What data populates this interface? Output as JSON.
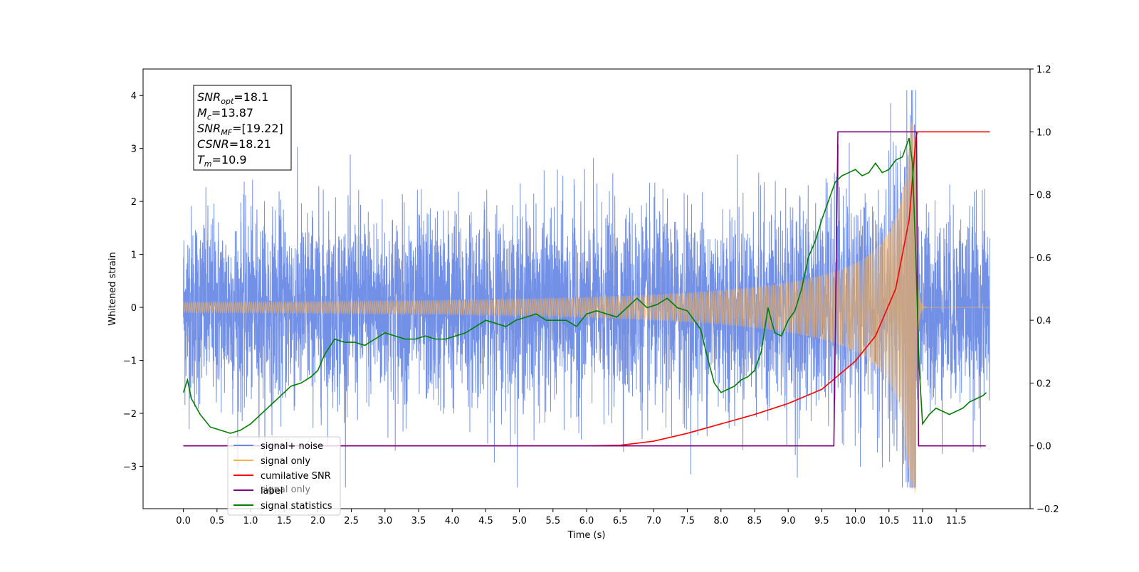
{
  "chart_data": {
    "type": "line",
    "xlabel": "Time (s)",
    "ylabel": "Whitened strain",
    "xlim": [
      -0.6,
      12.6
    ],
    "ylim": [
      -3.8,
      4.5
    ],
    "y2lim": [
      -0.2,
      1.2
    ],
    "x_ticks": [
      0.0,
      0.5,
      1.0,
      1.5,
      2.0,
      2.5,
      3.0,
      3.5,
      4.0,
      4.5,
      5.0,
      5.5,
      6.0,
      6.5,
      7.0,
      7.5,
      8.0,
      8.5,
      9.0,
      9.5,
      10.0,
      10.5,
      11.0,
      11.5
    ],
    "x_tick_labels": [
      "0.0",
      "0.5",
      "1.0",
      "1.5",
      "2.0",
      "2.5",
      "3.0",
      "3.5",
      "4.0",
      "4.5",
      "5.0",
      "5.5",
      "6.0",
      "6.5",
      "7.0",
      "7.5",
      "8.0",
      "8.5",
      "9.0",
      "9.5",
      "10.0",
      "10.5",
      "11.0",
      "11.5"
    ],
    "y_ticks": [
      -3,
      -2,
      -1,
      0,
      1,
      2,
      3,
      4
    ],
    "y_tick_labels": [
      "−3",
      "−2",
      "−1",
      "0",
      "1",
      "2",
      "3",
      "4"
    ],
    "y2_ticks": [
      -0.2,
      0.0,
      0.2,
      0.4,
      0.6,
      0.8,
      1.0,
      1.2
    ],
    "y2_tick_labels": [
      "−0.2",
      "0.0",
      "0.2",
      "0.4",
      "0.6",
      "0.8",
      "1.0",
      "1.2"
    ],
    "grid": false,
    "legend_position": "lower-left",
    "legend": [
      {
        "label": "signal+ noise",
        "color": "#6b8ae6"
      },
      {
        "label": "signal only",
        "color": "#ffb347"
      },
      {
        "label": "cumilative SNR",
        "color": "#ff0000"
      },
      {
        "label": "label",
        "color": "#800080"
      },
      {
        "label": "signal statistics",
        "color": "#008000"
      }
    ],
    "hidden_legend_text": "signal only",
    "annotation": {
      "lines": [
        {
          "var": "SNR",
          "sub": "opt",
          "value": "=18.1"
        },
        {
          "var": "M",
          "sub": "c",
          "value": "=13.87"
        },
        {
          "var": "SNR",
          "sub": "MF",
          "value": "=[19.22]"
        },
        {
          "var": "CSNR",
          "sub": "",
          "value": "=18.21"
        },
        {
          "var": "T",
          "sub": "m",
          "value": "=10.9"
        }
      ]
    },
    "series": [
      {
        "name": "signal+ noise",
        "axis": "left",
        "color": "#6b8ae6",
        "kind": "noise",
        "t_start": 0.0,
        "t_end": 12.0,
        "sigma": 0.9,
        "peak_max": 4.1,
        "trough_min": -3.4
      },
      {
        "name": "signal only",
        "axis": "left",
        "color": "#ffb347",
        "kind": "chirp",
        "t_start": 0.0,
        "t_end": 12.0,
        "merger_time": 10.9,
        "peak_amplitude": 3.5
      },
      {
        "name": "cumilative SNR",
        "axis": "right",
        "color": "#ff0000",
        "x": [
          0.0,
          6.0,
          6.5,
          7.0,
          7.5,
          8.0,
          8.5,
          9.0,
          9.5,
          10.0,
          10.3,
          10.6,
          10.8,
          10.9,
          10.92,
          12.0
        ],
        "values": [
          0.0,
          0.0,
          0.002,
          0.015,
          0.04,
          0.07,
          0.1,
          0.135,
          0.18,
          0.27,
          0.35,
          0.5,
          0.72,
          0.98,
          1.0,
          1.0
        ]
      },
      {
        "name": "label",
        "axis": "right",
        "color": "#800080",
        "x": [
          0.0,
          9.68,
          9.74,
          10.91,
          10.94,
          11.94
        ],
        "values": [
          0.0,
          0.0,
          1.0,
          1.0,
          0.0,
          0.0
        ]
      },
      {
        "name": "signal statistics",
        "axis": "right",
        "color": "#008000",
        "x": [
          0.0,
          0.06,
          0.12,
          0.25,
          0.4,
          0.55,
          0.7,
          0.85,
          1.0,
          1.15,
          1.3,
          1.45,
          1.6,
          1.75,
          1.9,
          2.0,
          2.1,
          2.25,
          2.4,
          2.55,
          2.7,
          2.85,
          3.0,
          3.15,
          3.3,
          3.45,
          3.6,
          3.75,
          3.9,
          4.05,
          4.2,
          4.35,
          4.5,
          4.65,
          4.8,
          4.95,
          5.1,
          5.25,
          5.4,
          5.55,
          5.7,
          5.85,
          6.0,
          6.15,
          6.3,
          6.45,
          6.6,
          6.75,
          6.9,
          7.05,
          7.2,
          7.35,
          7.5,
          7.6,
          7.7,
          7.8,
          7.9,
          8.0,
          8.1,
          8.2,
          8.3,
          8.4,
          8.5,
          8.6,
          8.7,
          8.8,
          8.9,
          9.0,
          9.1,
          9.2,
          9.3,
          9.4,
          9.5,
          9.6,
          9.7,
          9.8,
          9.9,
          10.0,
          10.1,
          10.2,
          10.3,
          10.4,
          10.5,
          10.6,
          10.7,
          10.8,
          10.85,
          10.9,
          10.95,
          11.0,
          11.1,
          11.2,
          11.3,
          11.4,
          11.5,
          11.6,
          11.7,
          11.8,
          11.9,
          11.95
        ],
        "values": [
          0.17,
          0.21,
          0.15,
          0.1,
          0.06,
          0.05,
          0.04,
          0.05,
          0.07,
          0.1,
          0.13,
          0.16,
          0.19,
          0.2,
          0.22,
          0.24,
          0.29,
          0.34,
          0.33,
          0.33,
          0.32,
          0.34,
          0.36,
          0.35,
          0.34,
          0.34,
          0.35,
          0.34,
          0.34,
          0.35,
          0.36,
          0.38,
          0.4,
          0.39,
          0.38,
          0.4,
          0.41,
          0.42,
          0.4,
          0.4,
          0.4,
          0.38,
          0.42,
          0.43,
          0.42,
          0.41,
          0.44,
          0.47,
          0.44,
          0.45,
          0.47,
          0.44,
          0.43,
          0.4,
          0.37,
          0.28,
          0.2,
          0.17,
          0.18,
          0.19,
          0.21,
          0.22,
          0.24,
          0.3,
          0.44,
          0.36,
          0.35,
          0.4,
          0.43,
          0.5,
          0.6,
          0.65,
          0.72,
          0.78,
          0.84,
          0.86,
          0.87,
          0.88,
          0.86,
          0.87,
          0.9,
          0.87,
          0.88,
          0.91,
          0.92,
          0.98,
          0.9,
          0.6,
          0.25,
          0.07,
          0.1,
          0.12,
          0.11,
          0.1,
          0.11,
          0.12,
          0.14,
          0.15,
          0.16,
          0.17
        ]
      }
    ]
  }
}
